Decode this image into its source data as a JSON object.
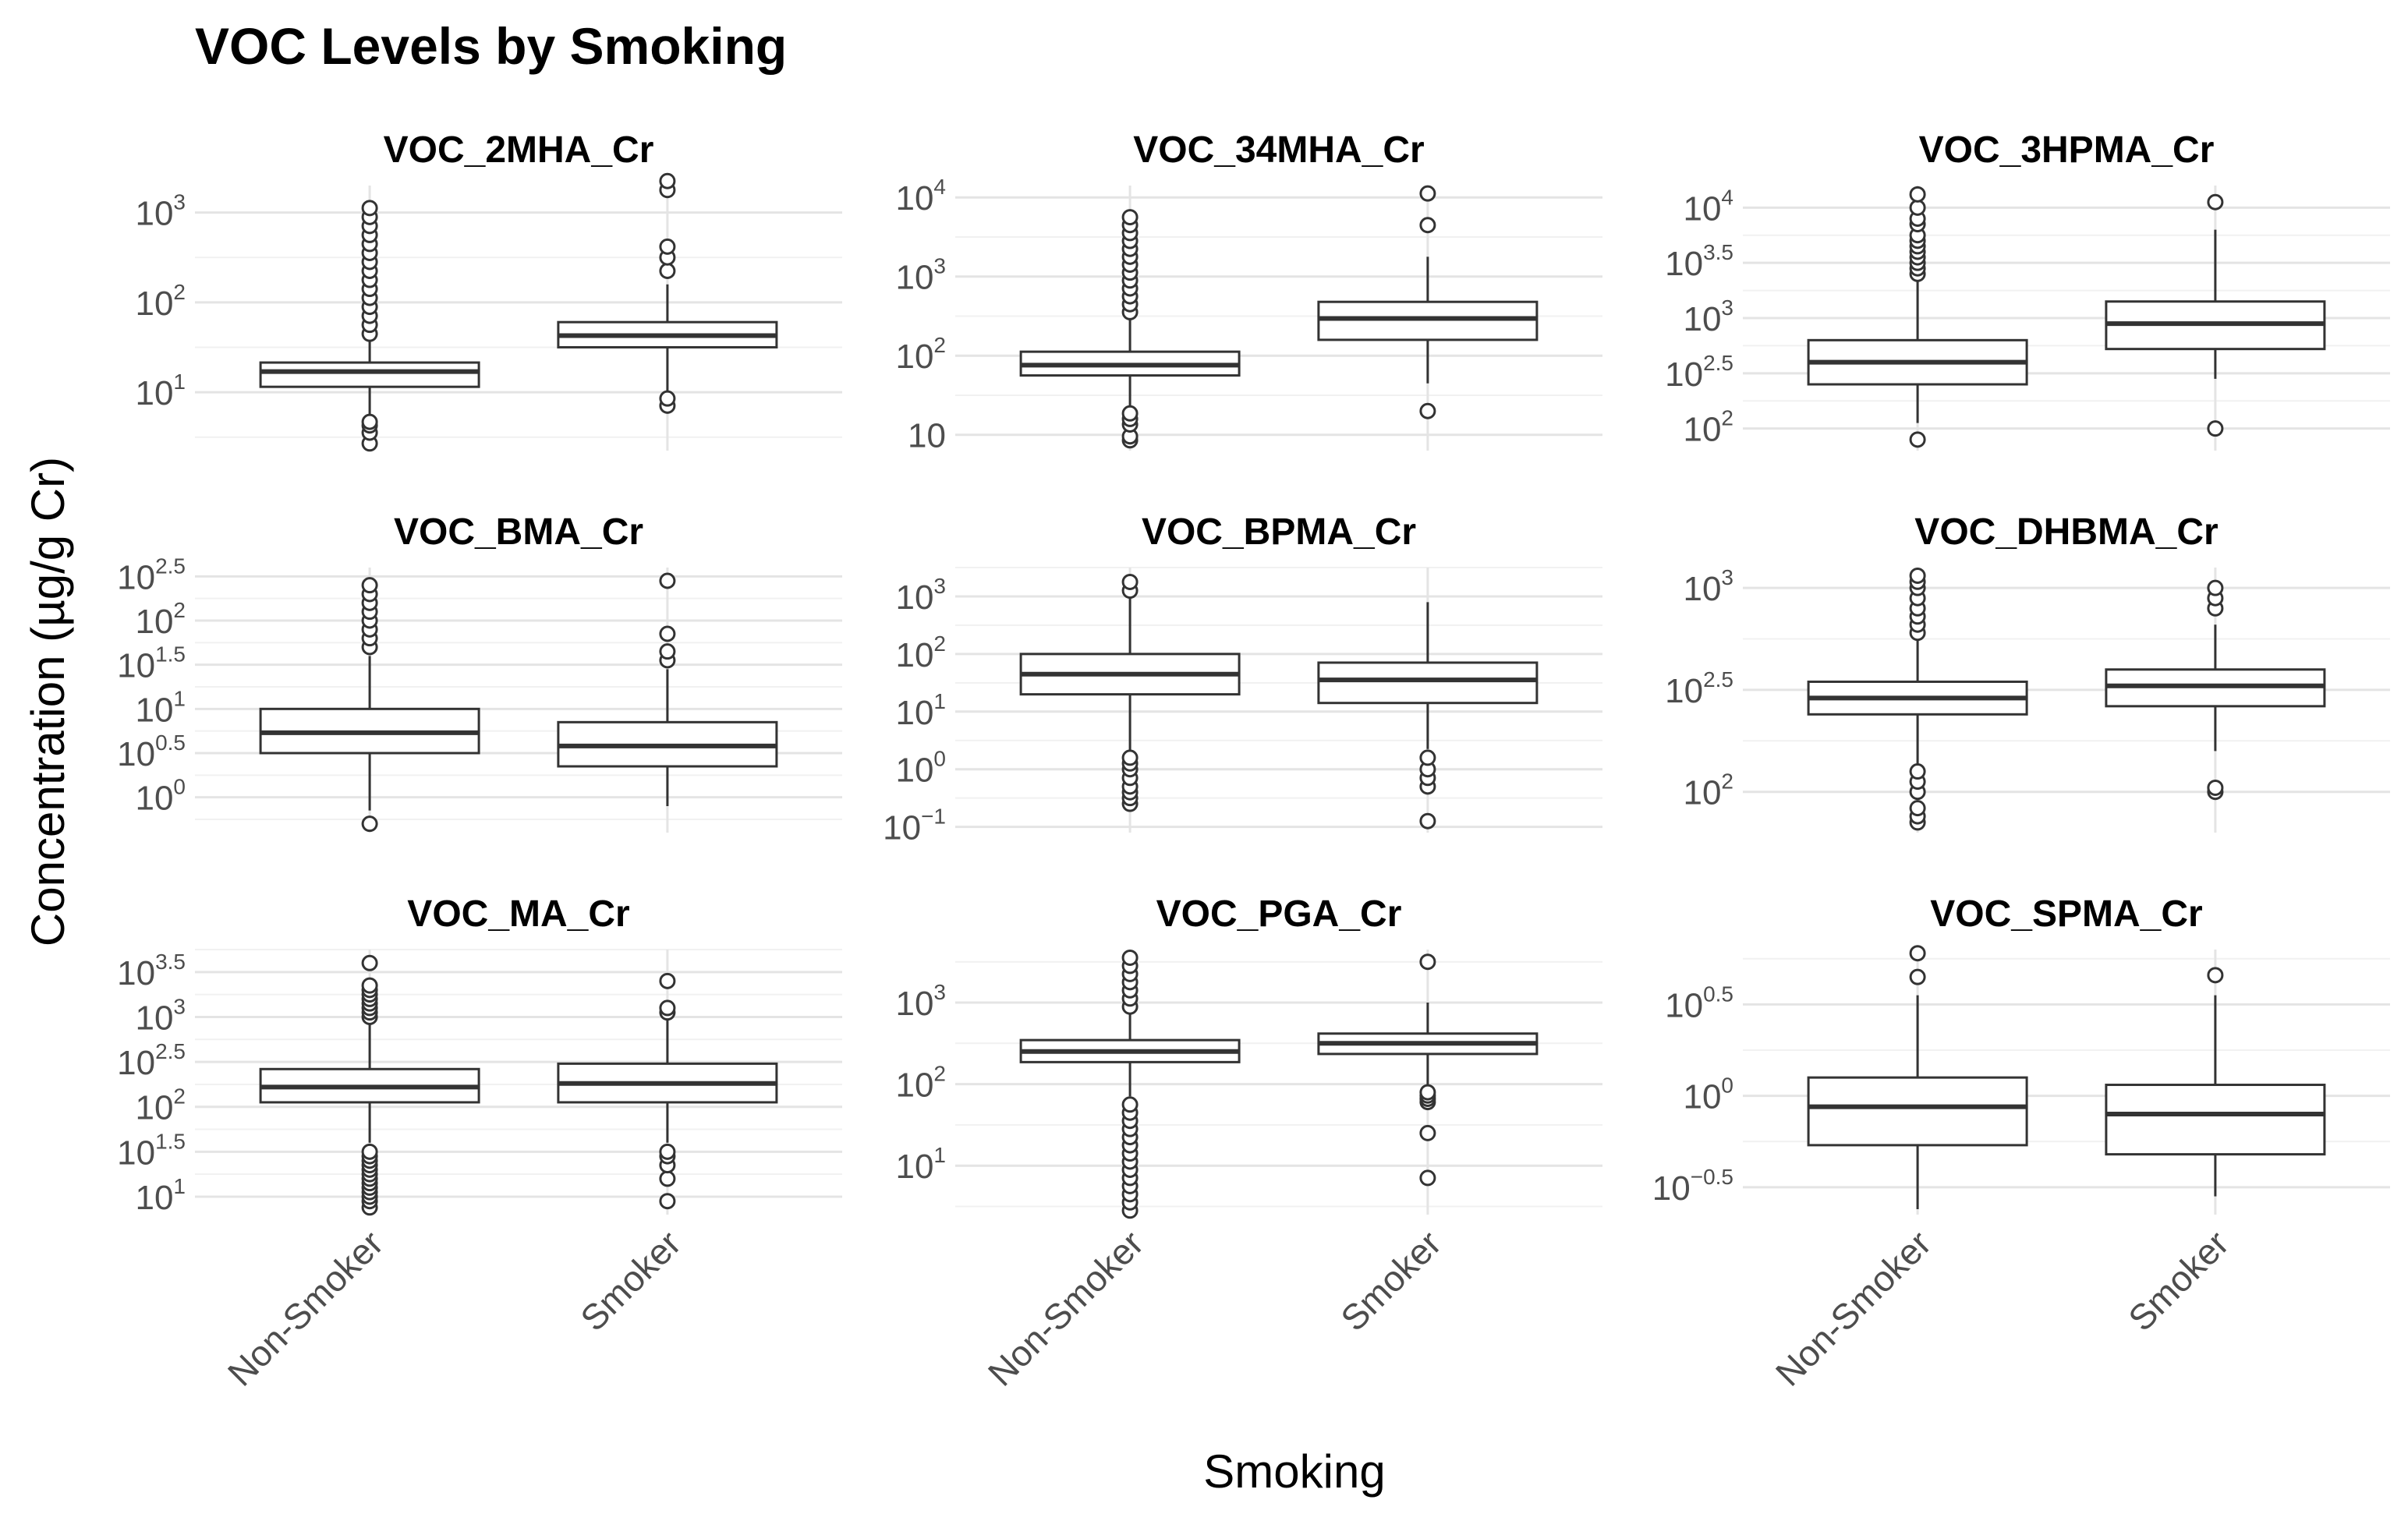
{
  "chart_data": {
    "type": "boxplot",
    "title": "VOC Levels by Smoking",
    "xlabel": "Smoking",
    "ylabel": "Concentration (µg/g Cr)",
    "categories": [
      "Non-Smoker",
      "Smoker"
    ],
    "yscale": "log10",
    "facets": [
      {
        "name": "VOC_2MHA_Cr",
        "ylim_log10": [
          0.35,
          3.3
        ],
        "ticks": [
          {
            "base": "10",
            "exp": "1",
            "log": 1
          },
          {
            "base": "10",
            "exp": "2",
            "log": 2
          },
          {
            "base": "10",
            "exp": "3",
            "log": 3
          }
        ],
        "boxes": [
          {
            "group": "Non-Smoker",
            "log10": {
              "whisker_low": 0.7,
              "q1": 1.06,
              "median": 1.23,
              "q3": 1.33,
              "whisker_high": 1.57
            },
            "outliers_log10": [
              0.43,
              0.55,
              0.63,
              0.67,
              1.65,
              1.75,
              1.85,
              1.95,
              2.05,
              2.15,
              2.25,
              2.35,
              2.45,
              2.55,
              2.65,
              2.75,
              2.85,
              2.95,
              3.05
            ]
          },
          {
            "group": "Smoker",
            "log10": {
              "whisker_low": 0.95,
              "q1": 1.5,
              "median": 1.63,
              "q3": 1.78,
              "whisker_high": 2.2
            },
            "outliers_log10": [
              0.85,
              0.93,
              2.35,
              2.5,
              2.62,
              3.25,
              3.35
            ]
          }
        ]
      },
      {
        "name": "VOC_34MHA_Cr",
        "ylim_log10": [
          0.8,
          4.15
        ],
        "ticks": [
          {
            "base": "10",
            "exp": "",
            "log": 1
          },
          {
            "base": "10",
            "exp": "1",
            "log": 1,
            "hide": true
          },
          {
            "base": "10",
            "exp": "2",
            "log": 2
          },
          {
            "base": "10",
            "exp": "3",
            "log": 3
          },
          {
            "base": "10",
            "exp": "4",
            "log": 4
          }
        ],
        "tick_labels": [
          "10",
          "10²",
          "10³",
          "10⁴"
        ],
        "boxes": [
          {
            "group": "Non-Smoker",
            "log10": {
              "whisker_low": 1.35,
              "q1": 1.75,
              "median": 1.88,
              "q3": 2.05,
              "whisker_high": 2.48
            },
            "outliers_log10": [
              0.93,
              0.98,
              1.13,
              1.2,
              1.27,
              2.55,
              2.65,
              2.75,
              2.85,
              2.95,
              3.05,
              3.15,
              3.25,
              3.35,
              3.45,
              3.55,
              3.65,
              3.75
            ]
          },
          {
            "group": "Smoker",
            "log10": {
              "whisker_low": 1.65,
              "q1": 2.2,
              "median": 2.47,
              "q3": 2.68,
              "whisker_high": 3.25
            },
            "outliers_log10": [
              1.3,
              3.65,
              4.05
            ]
          }
        ]
      },
      {
        "name": "VOC_3HPMA_Cr",
        "ylim_log10": [
          1.8,
          4.2
        ],
        "ticks": [
          {
            "base": "10",
            "exp": "2",
            "log": 2
          },
          {
            "base": "10",
            "exp": "2.5",
            "log": 2.5
          },
          {
            "base": "10",
            "exp": "3",
            "log": 3
          },
          {
            "base": "10",
            "exp": "3.5",
            "log": 3.5
          },
          {
            "base": "10",
            "exp": "4",
            "log": 4
          }
        ],
        "boxes": [
          {
            "group": "Non-Smoker",
            "log10": {
              "whisker_low": 2.05,
              "q1": 2.4,
              "median": 2.6,
              "q3": 2.8,
              "whisker_high": 3.35
            },
            "outliers_log10": [
              1.9,
              3.4,
              3.45,
              3.5,
              3.55,
              3.6,
              3.65,
              3.7,
              3.75,
              3.85,
              3.9,
              4.0,
              4.12
            ]
          },
          {
            "group": "Smoker",
            "log10": {
              "whisker_low": 2.45,
              "q1": 2.72,
              "median": 2.95,
              "q3": 3.15,
              "whisker_high": 3.8
            },
            "outliers_log10": [
              2.0,
              4.05
            ]
          }
        ]
      },
      {
        "name": "VOC_BMA_Cr",
        "ylim_log10": [
          -0.4,
          2.6
        ],
        "ticks": [
          {
            "base": "10",
            "exp": "0",
            "log": 0
          },
          {
            "base": "10",
            "exp": "0.5",
            "log": 0.5
          },
          {
            "base": "10",
            "exp": "1",
            "log": 1
          },
          {
            "base": "10",
            "exp": "1.5",
            "log": 1.5
          },
          {
            "base": "10",
            "exp": "2",
            "log": 2
          },
          {
            "base": "10",
            "exp": "2.5",
            "log": 2.5
          }
        ],
        "boxes": [
          {
            "group": "Non-Smoker",
            "log10": {
              "whisker_low": -0.15,
              "q1": 0.5,
              "median": 0.73,
              "q3": 1.0,
              "whisker_high": 1.6
            },
            "outliers_log10": [
              -0.3,
              1.7,
              1.8,
              1.9,
              2.0,
              2.1,
              2.2,
              2.3,
              2.4
            ]
          },
          {
            "group": "Smoker",
            "log10": {
              "whisker_low": -0.1,
              "q1": 0.35,
              "median": 0.58,
              "q3": 0.85,
              "whisker_high": 1.45
            },
            "outliers_log10": [
              1.55,
              1.65,
              1.85,
              2.45
            ]
          }
        ]
      },
      {
        "name": "VOC_BPMA_Cr",
        "ylim_log10": [
          -1.1,
          3.5
        ],
        "ticks": [
          {
            "base": "10",
            "exp": "−1",
            "log": -1
          },
          {
            "base": "10",
            "exp": "0",
            "log": 0
          },
          {
            "base": "10",
            "exp": "1",
            "log": 1
          },
          {
            "base": "10",
            "exp": "2",
            "log": 2
          },
          {
            "base": "10",
            "exp": "3",
            "log": 3
          }
        ],
        "boxes": [
          {
            "group": "Non-Smoker",
            "log10": {
              "whisker_low": 0.3,
              "q1": 1.3,
              "median": 1.65,
              "q3": 2.0,
              "whisker_high": 3.0
            },
            "outliers_log10": [
              -0.6,
              -0.5,
              -0.4,
              -0.3,
              -0.15,
              0.0,
              0.1,
              0.2,
              3.1,
              3.25
            ]
          },
          {
            "group": "Smoker",
            "log10": {
              "whisker_low": 0.35,
              "q1": 1.15,
              "median": 1.55,
              "q3": 1.85,
              "whisker_high": 2.9
            },
            "outliers_log10": [
              -0.9,
              -0.3,
              -0.15,
              0.0,
              0.2
            ]
          }
        ]
      },
      {
        "name": "VOC_DHBMA_Cr",
        "ylim_log10": [
          1.8,
          3.1
        ],
        "ticks": [
          {
            "base": "10",
            "exp": "2",
            "log": 2
          },
          {
            "base": "10",
            "exp": "2.5",
            "log": 2.5
          },
          {
            "base": "10",
            "exp": "3",
            "log": 3
          }
        ],
        "boxes": [
          {
            "group": "Non-Smoker",
            "log10": {
              "whisker_low": 2.13,
              "q1": 2.38,
              "median": 2.46,
              "q3": 2.54,
              "whisker_high": 2.75
            },
            "outliers_log10": [
              1.85,
              1.88,
              1.92,
              2.0,
              2.05,
              2.1,
              2.78,
              2.82,
              2.86,
              2.9,
              2.95,
              3.0,
              3.03,
              3.06
            ]
          },
          {
            "group": "Smoker",
            "log10": {
              "whisker_low": 2.2,
              "q1": 2.42,
              "median": 2.52,
              "q3": 2.6,
              "whisker_high": 2.82
            },
            "outliers_log10": [
              2.0,
              2.02,
              2.9,
              2.95,
              3.0
            ]
          }
        ]
      },
      {
        "name": "VOC_MA_Cr",
        "ylim_log10": [
          0.8,
          3.75
        ],
        "ticks": [
          {
            "base": "10",
            "exp": "1",
            "log": 1
          },
          {
            "base": "10",
            "exp": "1.5",
            "log": 1.5
          },
          {
            "base": "10",
            "exp": "2",
            "log": 2
          },
          {
            "base": "10",
            "exp": "2.5",
            "log": 2.5
          },
          {
            "base": "10",
            "exp": "3",
            "log": 3
          },
          {
            "base": "10",
            "exp": "3.5",
            "log": 3.5
          }
        ],
        "boxes": [
          {
            "group": "Non-Smoker",
            "log10": {
              "whisker_low": 1.6,
              "q1": 2.05,
              "median": 2.22,
              "q3": 2.42,
              "whisker_high": 2.95
            },
            "outliers_log10": [
              0.88,
              0.95,
              1.0,
              1.05,
              1.1,
              1.15,
              1.2,
              1.25,
              1.3,
              1.35,
              1.4,
              1.45,
              1.5,
              3.0,
              3.05,
              3.1,
              3.15,
              3.2,
              3.25,
              3.3,
              3.35,
              3.6
            ]
          },
          {
            "group": "Smoker",
            "log10": {
              "whisker_low": 1.6,
              "q1": 2.05,
              "median": 2.26,
              "q3": 2.48,
              "whisker_high": 3.0
            },
            "outliers_log10": [
              0.95,
              1.2,
              1.35,
              1.45,
              1.5,
              3.05,
              3.1,
              3.4
            ]
          }
        ]
      },
      {
        "name": "VOC_PGA_Cr",
        "ylim_log10": [
          0.4,
          3.65
        ],
        "ticks": [
          {
            "base": "10",
            "exp": "1",
            "log": 1
          },
          {
            "base": "10",
            "exp": "2",
            "log": 2
          },
          {
            "base": "10",
            "exp": "3",
            "log": 3
          }
        ],
        "boxes": [
          {
            "group": "Non-Smoker",
            "log10": {
              "whisker_low": 1.85,
              "q1": 2.27,
              "median": 2.4,
              "q3": 2.54,
              "whisker_high": 2.9
            },
            "outliers_log10": [
              0.45,
              0.55,
              0.65,
              0.75,
              0.85,
              0.95,
              1.05,
              1.15,
              1.25,
              1.35,
              1.45,
              1.55,
              1.65,
              1.75,
              2.95,
              3.05,
              3.15,
              3.25,
              3.35,
              3.45,
              3.55
            ]
          },
          {
            "group": "Smoker",
            "log10": {
              "whisker_low": 1.95,
              "q1": 2.37,
              "median": 2.5,
              "q3": 2.62,
              "whisker_high": 3.0
            },
            "outliers_log10": [
              0.85,
              1.4,
              1.78,
              1.82,
              1.86,
              1.9,
              3.5
            ]
          }
        ]
      },
      {
        "name": "VOC_SPMA_Cr",
        "ylim_log10": [
          -0.65,
          0.8
        ],
        "ticks": [
          {
            "base": "10",
            "exp": "−0.5",
            "log": -0.5
          },
          {
            "base": "10",
            "exp": "0",
            "log": 0
          },
          {
            "base": "10",
            "exp": "0.5",
            "log": 0.5
          }
        ],
        "boxes": [
          {
            "group": "Non-Smoker",
            "log10": {
              "whisker_low": -0.62,
              "q1": -0.27,
              "median": -0.06,
              "q3": 0.1,
              "whisker_high": 0.55
            },
            "outliers_log10": [
              0.65,
              0.78
            ]
          },
          {
            "group": "Smoker",
            "log10": {
              "whisker_low": -0.55,
              "q1": -0.32,
              "median": -0.1,
              "q3": 0.06,
              "whisker_high": 0.55
            },
            "outliers_log10": [
              0.66
            ]
          }
        ]
      }
    ]
  }
}
